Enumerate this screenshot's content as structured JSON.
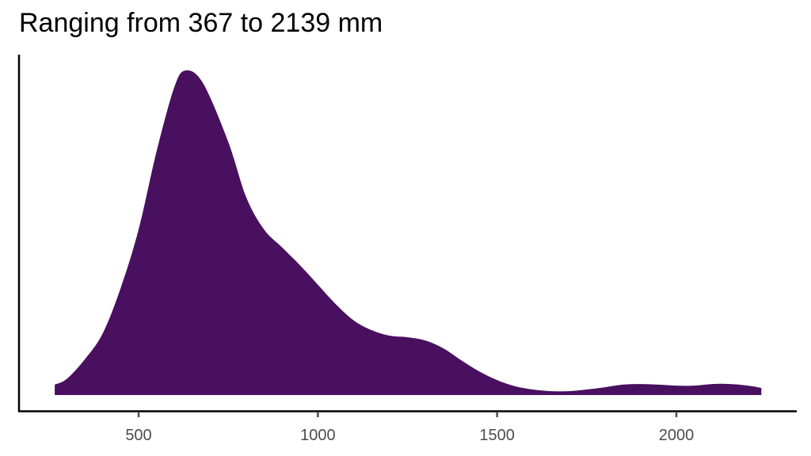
{
  "chart_data": {
    "type": "area",
    "subtype": "density",
    "title": "Ranging from 367 to 2139 mm",
    "xlabel": "",
    "ylabel": "",
    "xlim": [
      214,
      2384
    ],
    "x_ticks": [
      500,
      1000,
      1500,
      2000
    ],
    "x_tick_labels": [
      "500",
      "1000",
      "1500",
      "2000"
    ],
    "y_ticks": [],
    "grid": false,
    "legend": null,
    "fill_color": "#48105E",
    "series": [
      {
        "name": "density",
        "x": [
          266,
          300,
          350,
          400,
          450,
          500,
          550,
          600,
          632,
          680,
          750,
          800,
          850,
          900,
          950,
          1000,
          1050,
          1100,
          1150,
          1200,
          1250,
          1300,
          1350,
          1400,
          1450,
          1500,
          1550,
          1600,
          1650,
          1700,
          1750,
          1800,
          1850,
          1900,
          1950,
          2000,
          2050,
          2100,
          2150,
          2200,
          2237
        ],
        "values": [
          0.032,
          0.05,
          0.11,
          0.19,
          0.33,
          0.51,
          0.75,
          0.95,
          1.0,
          0.96,
          0.78,
          0.61,
          0.51,
          0.455,
          0.4,
          0.34,
          0.28,
          0.23,
          0.2,
          0.183,
          0.178,
          0.168,
          0.144,
          0.107,
          0.073,
          0.046,
          0.027,
          0.017,
          0.012,
          0.012,
          0.017,
          0.024,
          0.032,
          0.034,
          0.032,
          0.029,
          0.029,
          0.034,
          0.034,
          0.029,
          0.022
        ]
      }
    ]
  },
  "layout": {
    "axis_color": "#000000",
    "tick_label_color": "#4d4d4d"
  }
}
